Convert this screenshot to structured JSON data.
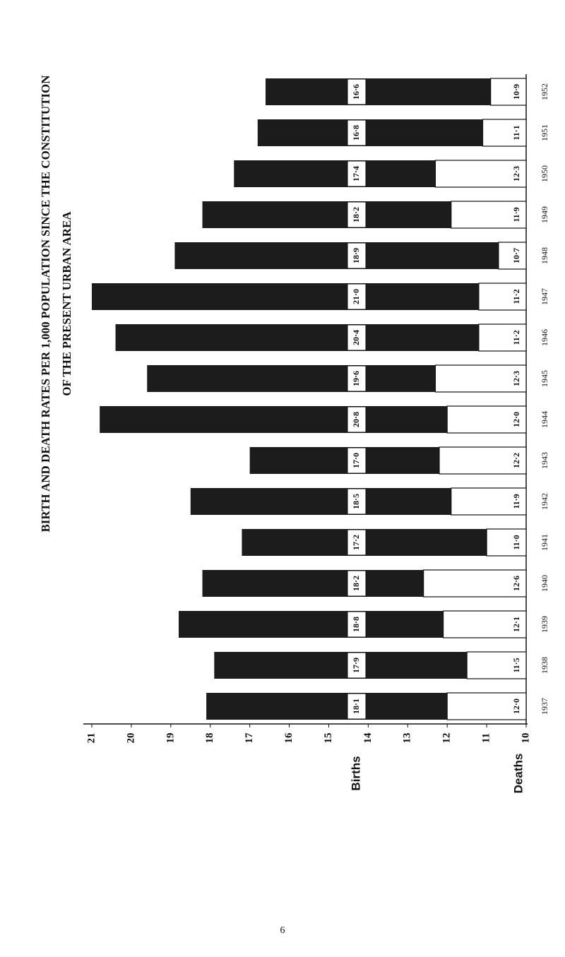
{
  "chart_data": {
    "type": "bar",
    "title": "BIRTH AND DEATH RATES PER 1,000 POPULATION SINCE THE CONSTITUTION",
    "subtitle": "OF THE PRESENT URBAN AREA",
    "categories": [
      "1937",
      "1938",
      "1939",
      "1940",
      "1941",
      "1942",
      "1943",
      "1944",
      "1945",
      "1946",
      "1947",
      "1948",
      "1949",
      "1950",
      "1951",
      "1952"
    ],
    "series": [
      {
        "name": "Births",
        "color": "#1c1c1c",
        "values": [
          18.1,
          17.9,
          18.8,
          18.2,
          17.2,
          18.5,
          17.0,
          20.8,
          19.6,
          20.4,
          21.0,
          18.9,
          18.2,
          17.4,
          16.8,
          16.6
        ],
        "value_labels": [
          "18·1",
          "17·9",
          "18·8",
          "18·2",
          "17·2",
          "18·5",
          "17·0",
          "20·8",
          "19·6",
          "20·4",
          "21·0",
          "18·9",
          "18·2",
          "17·4",
          "16·8",
          "16·6"
        ]
      },
      {
        "name": "Deaths",
        "color": "#ffffff",
        "values": [
          12.0,
          11.5,
          12.1,
          12.6,
          11.0,
          11.9,
          12.2,
          12.0,
          12.3,
          11.2,
          11.2,
          10.7,
          11.9,
          12.3,
          11.1,
          10.9
        ],
        "value_labels": [
          "12·0",
          "11·5",
          "12·1",
          "12·6",
          "11·0",
          "11·9",
          "12·2",
          "12·0",
          "12·3",
          "11·2",
          "11·2",
          "10·7",
          "11·9",
          "12·3",
          "11·1",
          "10·9"
        ]
      }
    ],
    "ylim": [
      10,
      21
    ],
    "yticks": [
      10,
      11,
      12,
      13,
      14,
      15,
      16,
      17,
      18,
      19,
      20,
      21
    ]
  },
  "page_number": "6"
}
